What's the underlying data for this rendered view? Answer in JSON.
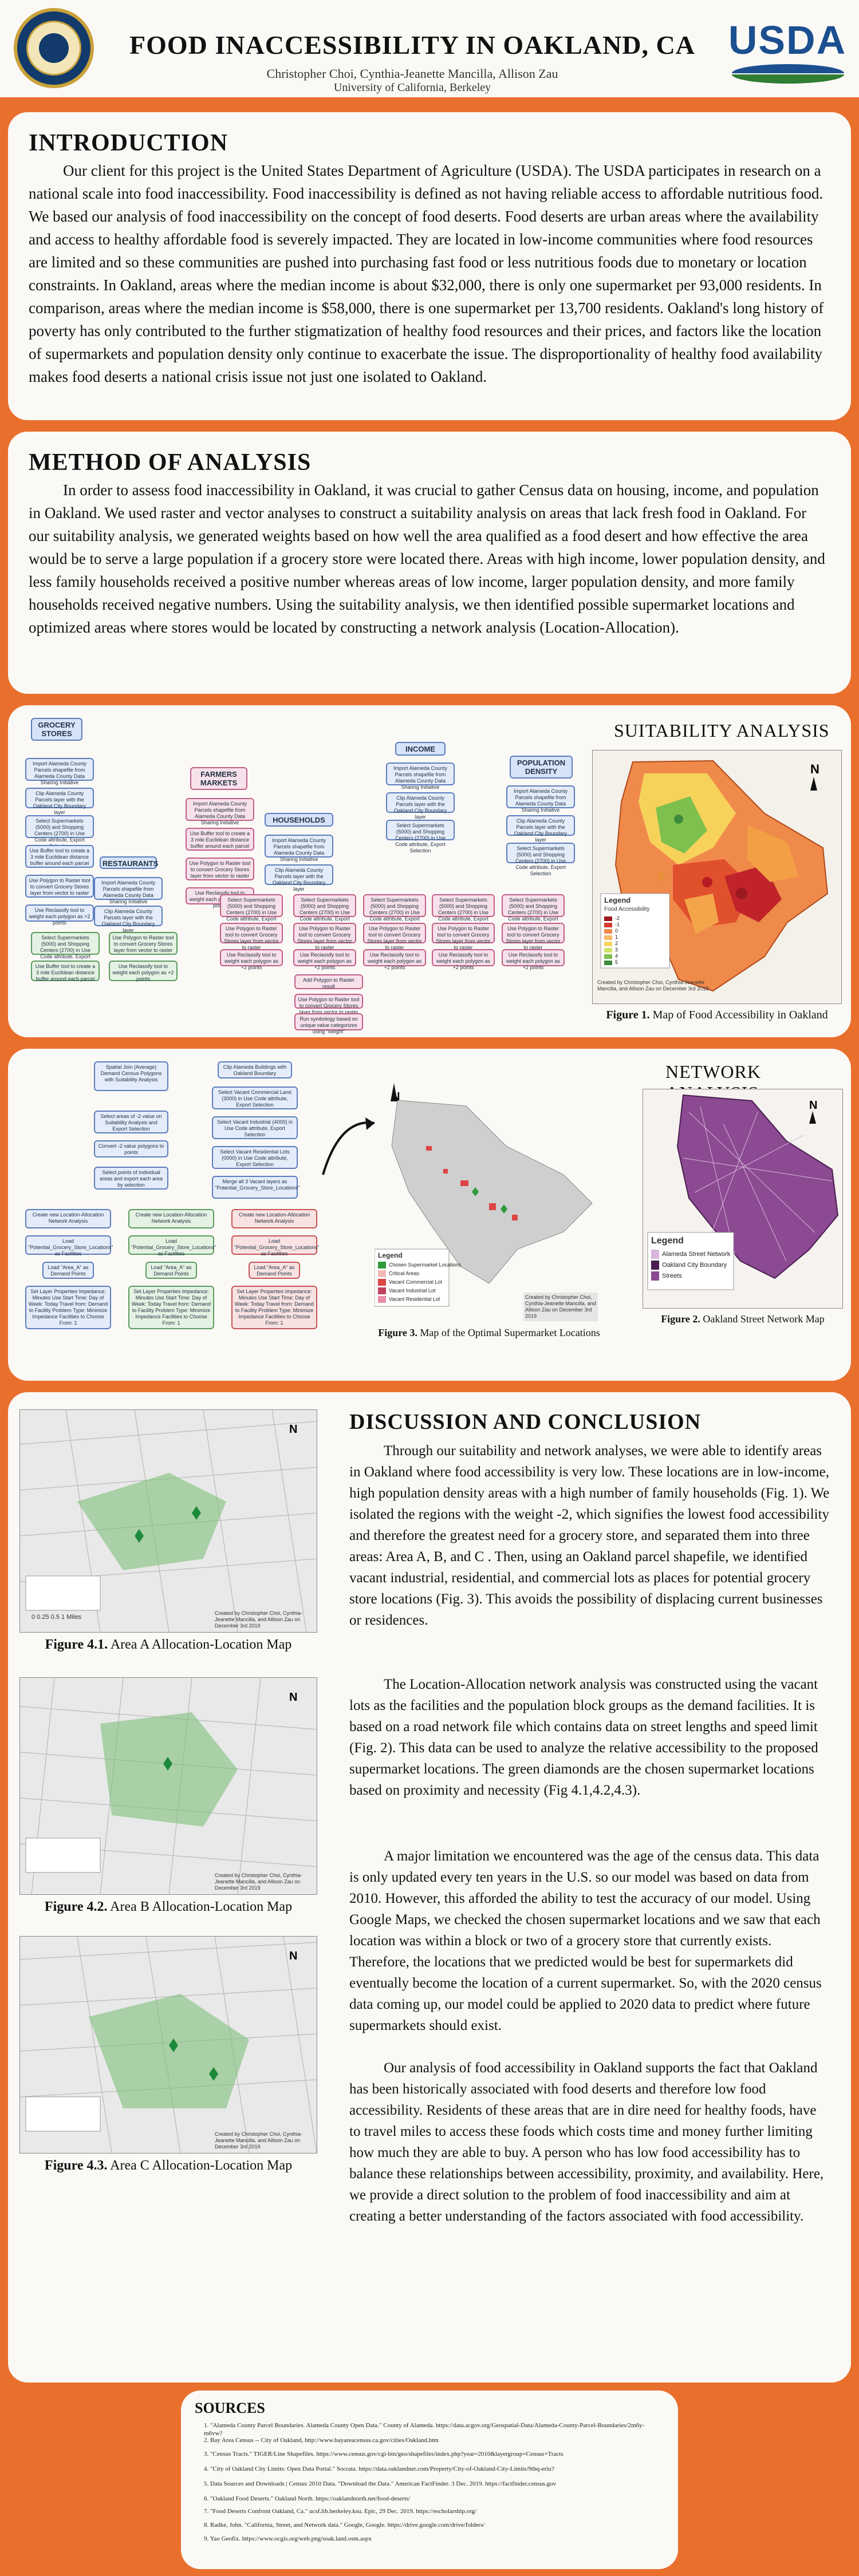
{
  "header": {
    "title": "FOOD INACCESSIBILITY IN OAKLAND, CA",
    "authors": "Christopher Choi, Cynthia-Jeanette Mancilla, Allison Zau",
    "university": "University of California, Berkeley",
    "logo_right": "USDA",
    "logo_left": "uc-berkeley-seal-icon"
  },
  "intro": {
    "heading": "INTRODUCTION",
    "text": "Our client for this project is the United States Department of Agriculture (USDA). The USDA participates in research on a national scale into food inaccessibility. Food inaccessibility is defined as not having reliable access to affordable nutritious food. We based our analysis of food inaccessibility on the concept of food deserts. Food deserts are urban areas where the availability and access to healthy affordable food is severely impacted. They are located in low-income communities where food resources are limited and so these communities are pushed into purchasing fast food or less nutritious foods due to monetary or location constraints. In Oakland, areas where the median income is about $32,000, there is only one supermarket per 93,000 residents. In comparison, areas where the median income is $58,000, there is one supermarket per 13,700 residents. Oakland's long history of poverty has only contributed to the further stigmatization of healthy food resources and their prices, and factors like the location of supermarkets and population density only continue to exacerbate the issue. The disproportionality of healthy food availability makes food deserts a national crisis issue not just one isolated to Oakland."
  },
  "method": {
    "heading": "METHOD OF ANALYSIS",
    "text": "In order to assess food inaccessibility in Oakland, it was crucial to gather Census data on housing, income, and population in Oakland. We used raster and vector analyses to construct a suitability analysis on areas that lack fresh food in Oakland. For our suitability analysis, we generated weights based on how well the area qualified as a food desert and how effective the area would be to serve a large population if a grocery store were located there. Areas with high income, lower population density, and less family households received a positive number whereas areas of low income, larger population density, and more family households received negative numbers. Using the suitability analysis, we then identified possible supermarket locations and optimized areas where stores would be located by constructing a network analysis (Location-Allocation)."
  },
  "suitability": {
    "title": "SUITABILITY ANALYSIS",
    "flow_headers": [
      "GROCERY STORES",
      "FARMERS MARKETS",
      "HOUSEHOLDS",
      "INCOME",
      "POPULATION DENSITY",
      "RESTAURANTS"
    ],
    "flow_steps": [
      "Import Alameda County Parcels shapefile from Alameda County Data Sharing Initiative",
      "Clip Alameda County Parcels layer with the Oakland City Boundary layer",
      "Select Supermarkets (5000) and Shopping Centers (2700) in Use Code attribute, Export Selection",
      "Use Buffer tool to create a 3 mile Euclidean distance buffer around each parcel",
      "Use Polygon to Raster tool to convert Grocery Stores layer from vector to raster",
      "Use Reclassify tool to weight each polygon as +2 points",
      "Add Polygon to Raster result",
      "Run symbology based on unique value categorizes using \"weight\""
    ],
    "map_legend_title": "Legend",
    "map_legend_sub": "Food Accessibility",
    "map_legend_items": [
      "-2",
      "-1",
      "0",
      "1",
      "2",
      "3",
      "4",
      "5"
    ],
    "map_credit": "Created by Christopher Choi, Cynthia-Jeanette Mancilla, and Allison Zau on December 3rd 2019",
    "caption_label": "Figure 1.",
    "caption": "Map of Food Accessibility in Oakland"
  },
  "network": {
    "title": "NETWORK ANALYSIS",
    "flow_steps": [
      "Spatial Join (Average) Demand Census Polygons with Suitability Analysis",
      "Clip Alameda Buildings with Oakland Boundary",
      "Select Vacant Commercial Land (3000) in Use Code attribute, Export Selection",
      "Select Vacant Industrial (4000) in Use Code attribute, Export Selection",
      "Select Vacant Residential Lots (0000) in Use Code attribute, Export Selection",
      "Merge all 3 Vacant layers as \"Potential_Grocery_Store_Locations\"",
      "Select areas of -2 value on Suitability Analysis and Export Selection",
      "Convert -2 value polygons to points",
      "Select points of individual areas and export each area by selection",
      "Create new Location-Allocation Network Analysis",
      "Load \"Potential_Grocery_Store_Locations\" as Facilities",
      "Load \"Area_A\" as Demand Points",
      "Set Layer Properties Impedance: Minutes Use Start Time: Day of Week: Today Travel from: Demand to Facility Problem Type: Minimize Impedance Facilities to Choose From: 1"
    ],
    "optimal_legend_title": "Legend",
    "optimal_legend_items": [
      "Chosen Supermarket Locations",
      "Critical Areas",
      "Vacant Commercial Lot",
      "Vacant Industrial Lot",
      "Vacant Residential Lot"
    ],
    "optimal_credit": "Created by Christopher Choi, Cynthia-Jeanette Mancilla, and Allison Zau on December 3rd 2019",
    "caption3_label": "Figure 3.",
    "caption3": "Map of the Optimal Supermarket Locations",
    "street_legend_title": "Legend",
    "street_legend_items": [
      "Alameda Street Network",
      "Oakland City Boundary",
      "Streets"
    ],
    "caption2_label": "Figure 2.",
    "caption2": "Oakland Street Network Map"
  },
  "discussion": {
    "heading": "DISCUSSION AND CONCLUSION",
    "p1": "Through our suitability and network analyses, we were able to identify areas in Oakland where food accessibility is very low. These locations are in low-income, high population density areas with a high number of family households (Fig. 1). We isolated the regions with the weight -2, which signifies the lowest food accessibility and therefore the greatest need for a grocery store, and separated them into three areas: Area A, B, and C . Then, using an Oakland parcel shapefile, we identified vacant industrial, residential, and commercial lots as places for potential grocery store locations (Fig. 3). This avoids the possibility of displacing current businesses or residences.",
    "p2": "The Location-Allocation network analysis was constructed using the vacant lots as the facilities and the population block groups as the demand facilities. It is based on a road network file which contains data on street lengths and speed limit (Fig. 2). This data can be used to analyze the relative accessibility to the proposed supermarket locations. The green diamonds are the chosen supermarket locations based on proximity and necessity (Fig 4.1,4.2,4.3).",
    "p3": "A major limitation we encountered was the age of the census data. This data is only updated every ten years in the U.S. so our model was based on data from 2010. However, this afforded the ability to test the accuracy of our model. Using Google Maps, we checked the chosen supermarket locations and we saw that each location was within a block or two of a grocery store that currently exists. Therefore, the locations that we predicted would be best for supermarkets did eventually become the location of a current supermarket. So, with the 2020 census data coming up, our model could be applied to 2020 data to predict where future supermarkets should exist.",
    "p4": "Our analysis of food accessibility in Oakland supports the fact that Oakland has been historically associated with food deserts and therefore low food accessibility. Residents of these areas that are in dire need for healthy foods, have to travel miles to access these foods which costs time and money further limiting how much they are able to buy. A person who has low food accessibility has to balance these relationships between accessibility, proximity, and availability. Here, we provide a direct solution to the problem of food inaccessibility and aim at creating a better understanding of the factors associated with food accessibility.",
    "fig41_label": "Figure 4.1.",
    "fig41": "Area A Allocation-Location Map",
    "fig42_label": "Figure 4.2.",
    "fig42": "Area B Allocation-Location Map",
    "fig43_label": "Figure 4.3.",
    "fig43": "Area C Allocation-Location Map",
    "map_credit": "Created by Christopher Choi, Cynthia-Jeanette Mancilla, and Allison Zau on December 3rd 2019",
    "scale": "0 0.25 0.5 1 Miles"
  },
  "sources": {
    "heading": "SOURCES",
    "items": [
      "1. \"Alameda County Parcel Boundaries. Alameda County Open Data.\" County of Alameda. https://data.acgov.org/Geospatial-Data/Alameda-County-Parcel-Boundaries/2m6y-m6vw?",
      "2. Bay Area Census -- City of Oakland, http://www.bayareacensus.ca.gov/cities/Oakland.htm",
      "3. \"Census Tracts.\" TIGER/Line Shapefiles. https://www.census.gov/cgi-bin/geo/shapefiles/index.php?year=2010&layergroup=Census+Tracts",
      "4. \"City of Oakland City Limits: Open Data Portal.\" Socrata. https://data.oaklandnet.com/Property/City-of-Oakland-City-Limits/9thq-eriu?",
      "5. Data Sources and Downloads | Census 2010 Data. \"Download the Data.\" American FactFinder. 3 Dec. 2019. https://factfinder.census.gov",
      "6. \"Oakland Food Deserts.\" Oakland North. https://oaklandnorth.net/food-deserts/",
      "7. \"Food Deserts Confront Oakland, Ca.\" ucsf.lib.berkeley.ksu. Epic, 29 Dec. 2019. https://escholarship.org/",
      "8. Radke, John. \"California, Street, and Network data.\" Google, Google. https://drive.google.com/drive/folders/",
      "9. Yao Geofix. https://www.ocgis.org/web.png/soak.land.osm.aspx"
    ]
  }
}
